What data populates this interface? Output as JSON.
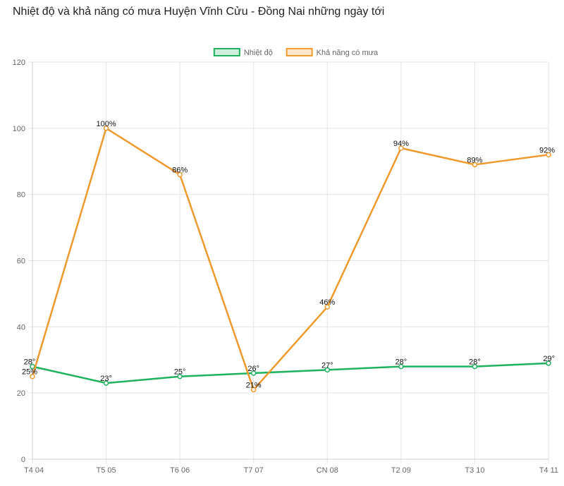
{
  "title": "Nhiệt độ và khả năng có mưa Huyện Vĩnh Cửu - Đồng Nai những ngày tới",
  "chart_data": {
    "type": "line",
    "title": "Nhiệt độ và khả năng có mưa Huyện Vĩnh Cửu - Đồng Nai những ngày tới",
    "categories": [
      "T4 04",
      "T5 05",
      "T6 06",
      "T7 07",
      "CN 08",
      "T2 09",
      "T3 10",
      "T4 11"
    ],
    "ylim": [
      0,
      120
    ],
    "yticks": [
      "0",
      "20",
      "40",
      "60",
      "80",
      "100",
      "120"
    ],
    "grid": true,
    "legend_position": "top",
    "series": [
      {
        "name": "Nhiệt độ",
        "color": "#1fb35f",
        "values": [
          28,
          23,
          25,
          26,
          27,
          28,
          28,
          29
        ],
        "labels": [
          "28°",
          "23°",
          "25°",
          "26°",
          "27°",
          "28°",
          "28°",
          "29°"
        ]
      },
      {
        "name": "Khả năng có mưa",
        "color": "#ef9a2e",
        "values": [
          25,
          100,
          86,
          21,
          46,
          94,
          89,
          92
        ],
        "labels": [
          "25%",
          "100%",
          "86%",
          "21%",
          "46%",
          "94%",
          "89%",
          "92%"
        ]
      }
    ]
  }
}
